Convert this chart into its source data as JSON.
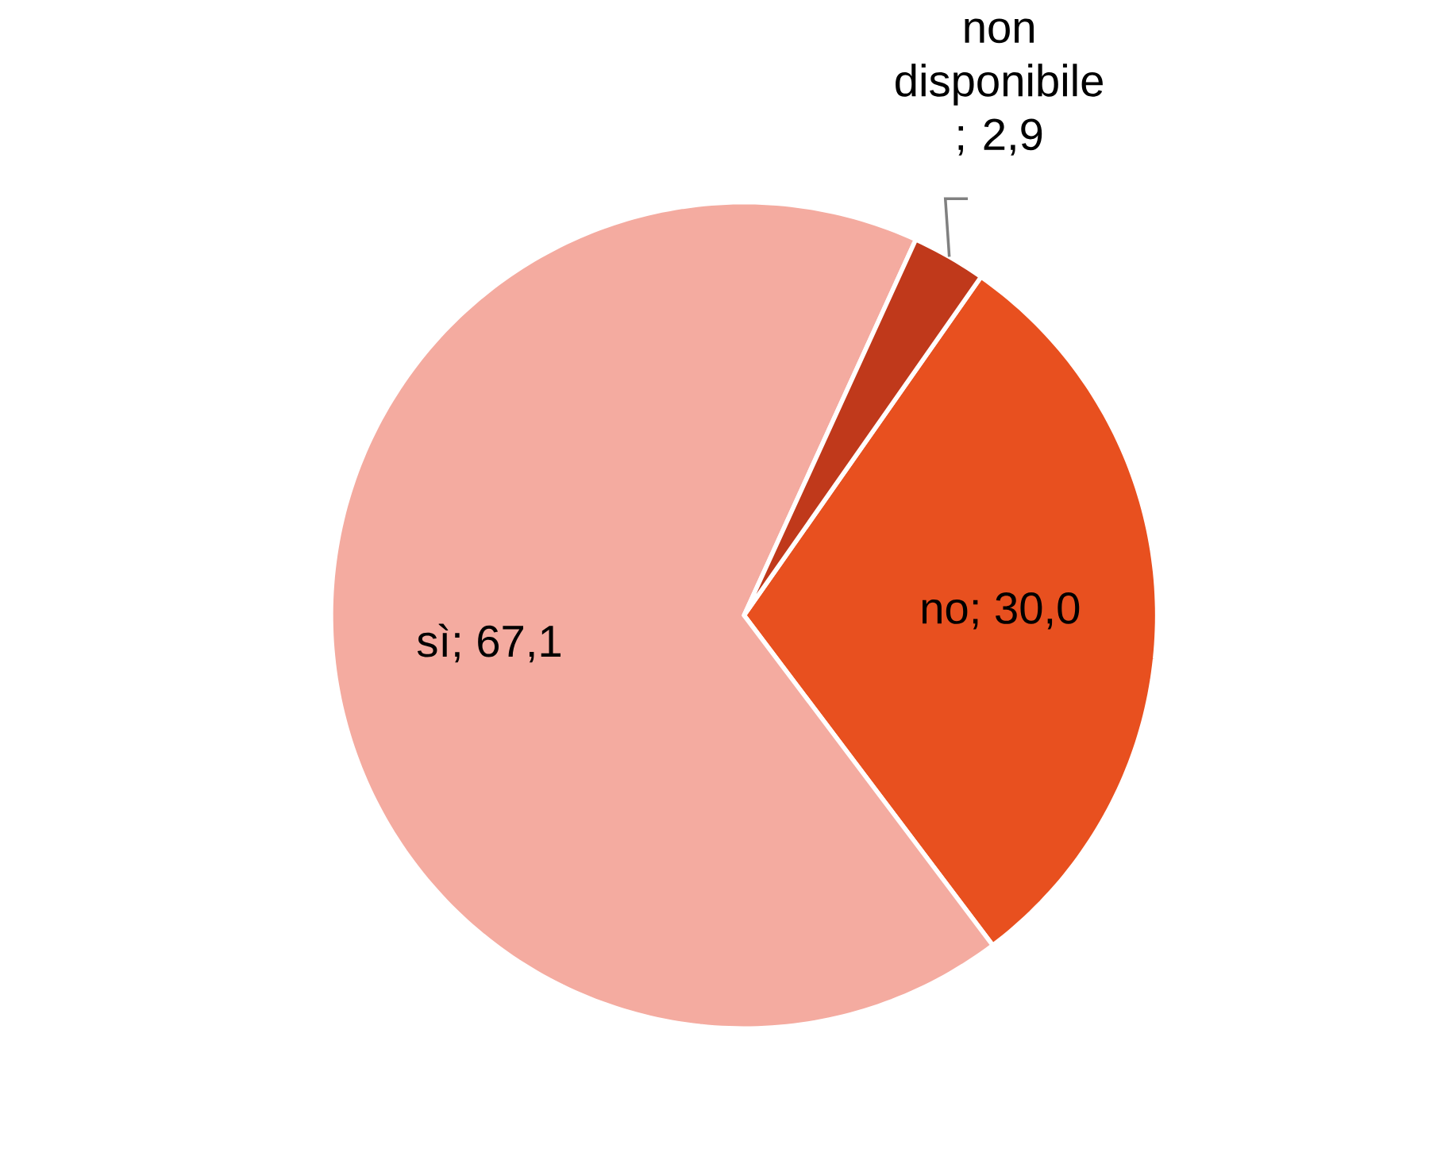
{
  "chart_data": {
    "type": "pie",
    "categories": [
      "no",
      "sì",
      "non disponibile"
    ],
    "values": [
      30.0,
      67.1,
      2.9
    ],
    "value_labels": [
      "; 30,0",
      "; 67,1",
      "; 2,9"
    ],
    "colors": [
      "#e8501f",
      "#f4aba0",
      "#c0391b"
    ]
  }
}
